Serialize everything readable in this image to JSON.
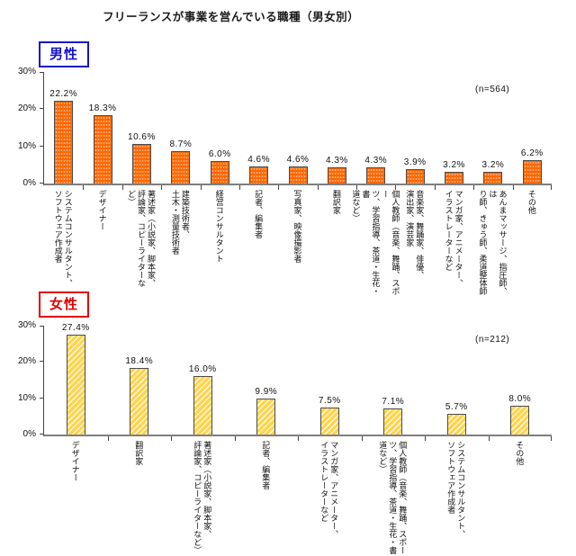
{
  "title": "フリーランスが事業を営んでいる職種（男女別）",
  "chart_data": [
    {
      "type": "bar",
      "gender_label": "男性",
      "n_label": "(n=564)",
      "unit": "%",
      "ylim": [
        0,
        30
      ],
      "yticks_top_to_bottom": [
        "30%",
        "20%",
        "10%",
        "0%"
      ],
      "accent_color": "#1414CC",
      "bar_fill": "#FF6600",
      "bar_pattern": "dots",
      "categories": [
        "システムコンサルタント、\nソフトウェア作成者",
        "デザイナー",
        "著述家（小説家、脚本家、\n評論家、コピーライターなど）",
        "建築技術者、\n土木・測量技術者",
        "経営コンサルタント",
        "記者、編集者",
        "写真家、映像撮影者",
        "翻訳家",
        "個人教師（音楽、舞踊、スポー\nツ、学習指導、茶道・生花・書\n道など）",
        "音楽家、舞踊家、俳優、\n演出家、演芸家",
        "マンガ家、アニメーター、\nイラストレーターなど",
        "あんまマッサージ、指圧師、は\nり師、きゅう師、柔道整体師",
        "その他"
      ],
      "values": [
        22.2,
        18.3,
        10.6,
        8.7,
        6.0,
        4.6,
        4.6,
        4.3,
        4.3,
        3.9,
        3.2,
        3.2,
        6.2
      ]
    },
    {
      "type": "bar",
      "gender_label": "女性",
      "n_label": "(n=212)",
      "unit": "%",
      "ylim": [
        0,
        30
      ],
      "yticks_top_to_bottom": [
        "30%",
        "20%",
        "10%",
        "0%"
      ],
      "accent_color": "#E00000",
      "bar_fill": "#FFD44D",
      "bar_pattern": "diagonal-hatch",
      "categories": [
        "デザイナー",
        "翻訳家",
        "著述家（小説家、脚本家、\n評論家、コピーライターなど）",
        "記者、編集者",
        "マンガ家、アニメーター、\nイラストレーターなど",
        "個人教師（音楽、舞踊、スポー\nツ、学習指導、茶道・生花・書\n道など）",
        "システムコンサルタント、\nソフトウェア作成者",
        "その他"
      ],
      "values": [
        27.4,
        18.4,
        16.0,
        9.9,
        7.5,
        7.1,
        5.7,
        8.0
      ]
    }
  ]
}
